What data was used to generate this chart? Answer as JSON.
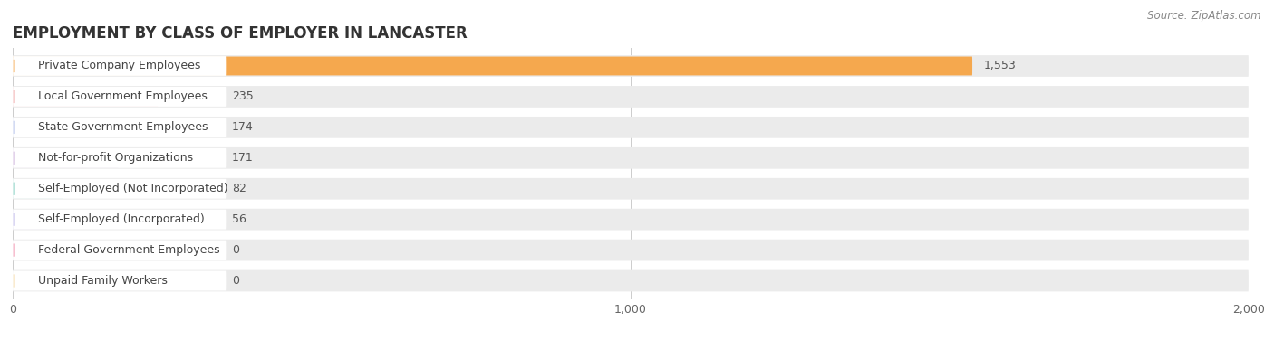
{
  "title": "EMPLOYMENT BY CLASS OF EMPLOYER IN LANCASTER",
  "source": "Source: ZipAtlas.com",
  "categories": [
    "Private Company Employees",
    "Local Government Employees",
    "State Government Employees",
    "Not-for-profit Organizations",
    "Self-Employed (Not Incorporated)",
    "Self-Employed (Incorporated)",
    "Federal Government Employees",
    "Unpaid Family Workers"
  ],
  "values": [
    1553,
    235,
    174,
    171,
    82,
    56,
    0,
    0
  ],
  "bar_colors": [
    "#f5a84e",
    "#f0a0a0",
    "#a8b8e8",
    "#c8a8d8",
    "#70c8b8",
    "#b8b0e8",
    "#f080a0",
    "#f5d8a0"
  ],
  "bar_bg_color": "#ebebeb",
  "xlim": [
    0,
    2000
  ],
  "xticks": [
    0,
    1000,
    2000
  ],
  "xtick_labels": [
    "0",
    "1,000",
    "2,000"
  ],
  "title_fontsize": 12,
  "label_fontsize": 9,
  "value_fontsize": 9,
  "source_fontsize": 8.5,
  "background_color": "#ffffff"
}
